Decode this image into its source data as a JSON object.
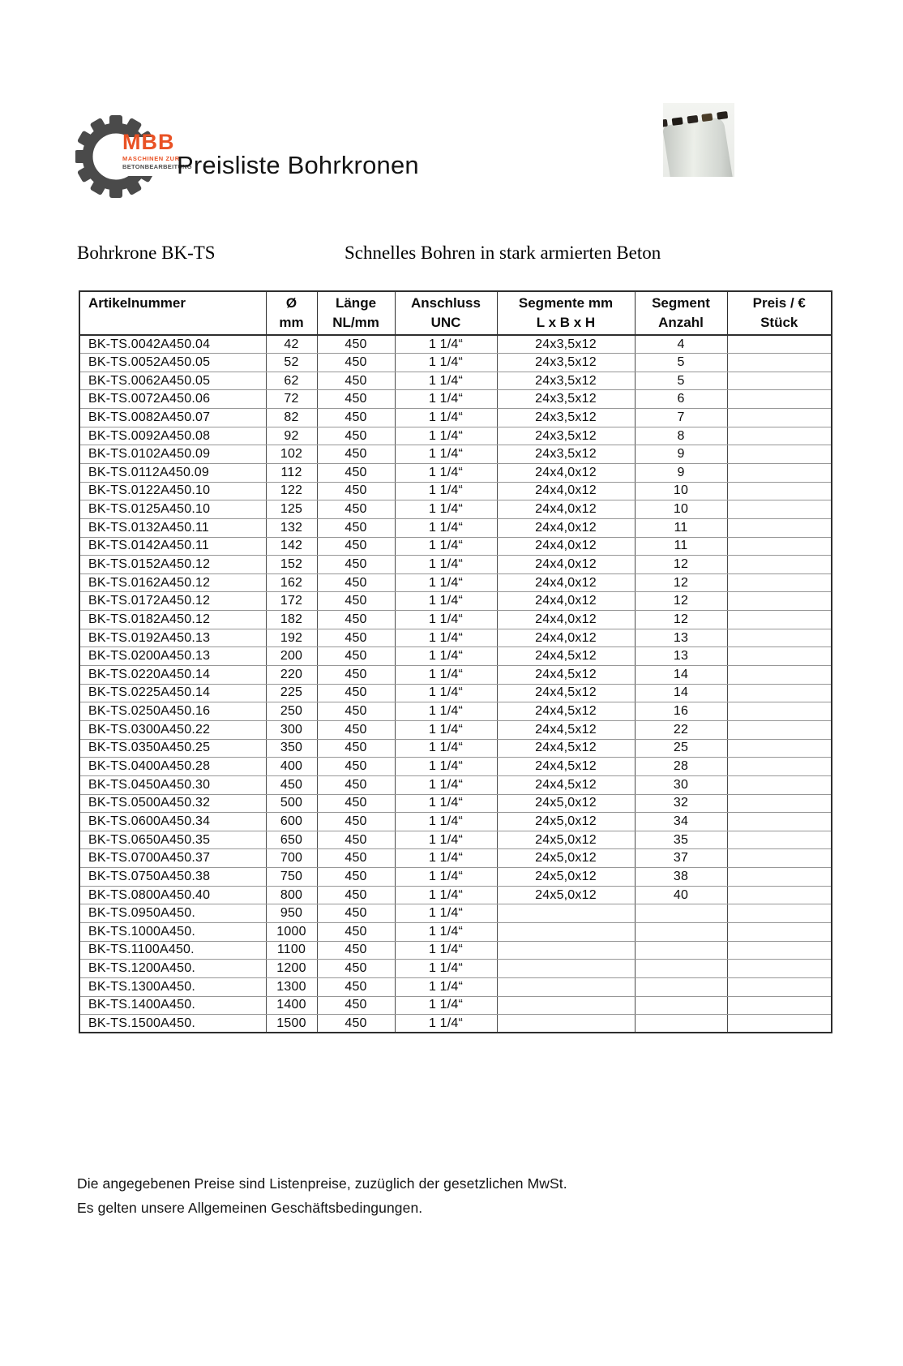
{
  "page": {
    "title": "Preisliste Bohrkronen"
  },
  "logo": {
    "brand": "MBB",
    "line1": "MASCHINEN ZUR",
    "line2": "BETONBEARBEITUNG",
    "accent_color": "#E95225",
    "gear_color": "#4A4A4A"
  },
  "section": {
    "product": "Bohrkrone BK-TS",
    "description": "Schnelles Bohren in stark armierten Beton"
  },
  "table": {
    "columns": [
      {
        "line1": "Artikelnummer",
        "line2": ""
      },
      {
        "line1": "Ø",
        "line2": "mm"
      },
      {
        "line1": "Länge",
        "line2": "NL/mm"
      },
      {
        "line1": "Anschluss",
        "line2": "UNC"
      },
      {
        "line1": "Segmente mm",
        "line2": "L x B x H"
      },
      {
        "line1": "Segment",
        "line2": "Anzahl"
      },
      {
        "line1": "Preis / €",
        "line2": "Stück"
      }
    ],
    "rows": [
      [
        "BK-TS.0042A450.04",
        "42",
        "450",
        "1 1/4“",
        "24x3,5x12",
        "4",
        ""
      ],
      [
        "BK-TS.0052A450.05",
        "52",
        "450",
        "1 1/4“",
        "24x3,5x12",
        "5",
        ""
      ],
      [
        "BK-TS.0062A450.05",
        "62",
        "450",
        "1 1/4“",
        "24x3,5x12",
        "5",
        ""
      ],
      [
        "BK-TS.0072A450.06",
        "72",
        "450",
        "1 1/4“",
        "24x3,5x12",
        "6",
        ""
      ],
      [
        "BK-TS.0082A450.07",
        "82",
        "450",
        "1 1/4“",
        "24x3,5x12",
        "7",
        ""
      ],
      [
        "BK-TS.0092A450.08",
        "92",
        "450",
        "1 1/4“",
        "24x3,5x12",
        "8",
        ""
      ],
      [
        "BK-TS.0102A450.09",
        "102",
        "450",
        "1 1/4“",
        "24x3,5x12",
        "9",
        ""
      ],
      [
        "BK-TS.0112A450.09",
        "112",
        "450",
        "1 1/4“",
        "24x4,0x12",
        "9",
        ""
      ],
      [
        "BK-TS.0122A450.10",
        "122",
        "450",
        "1 1/4“",
        "24x4,0x12",
        "10",
        ""
      ],
      [
        "BK-TS.0125A450.10",
        "125",
        "450",
        "1 1/4“",
        "24x4,0x12",
        "10",
        ""
      ],
      [
        "BK-TS.0132A450.11",
        "132",
        "450",
        "1 1/4“",
        "24x4,0x12",
        "11",
        ""
      ],
      [
        "BK-TS.0142A450.11",
        "142",
        "450",
        "1 1/4“",
        "24x4,0x12",
        "11",
        ""
      ],
      [
        "BK-TS.0152A450.12",
        "152",
        "450",
        "1 1/4“",
        "24x4,0x12",
        "12",
        ""
      ],
      [
        "BK-TS.0162A450.12",
        "162",
        "450",
        "1 1/4“",
        "24x4,0x12",
        "12",
        ""
      ],
      [
        "BK-TS.0172A450.12",
        "172",
        "450",
        "1 1/4“",
        "24x4,0x12",
        "12",
        ""
      ],
      [
        "BK-TS.0182A450.12",
        "182",
        "450",
        "1 1/4“",
        "24x4,0x12",
        "12",
        ""
      ],
      [
        "BK-TS.0192A450.13",
        "192",
        "450",
        "1 1/4“",
        "24x4,0x12",
        "13",
        ""
      ],
      [
        "BK-TS.0200A450.13",
        "200",
        "450",
        "1 1/4“",
        "24x4,5x12",
        "13",
        ""
      ],
      [
        "BK-TS.0220A450.14",
        "220",
        "450",
        "1 1/4“",
        "24x4,5x12",
        "14",
        ""
      ],
      [
        "BK-TS.0225A450.14",
        "225",
        "450",
        "1 1/4“",
        "24x4,5x12",
        "14",
        ""
      ],
      [
        "BK-TS.0250A450.16",
        "250",
        "450",
        "1 1/4“",
        "24x4,5x12",
        "16",
        ""
      ],
      [
        "BK-TS.0300A450.22",
        "300",
        "450",
        "1 1/4“",
        "24x4,5x12",
        "22",
        ""
      ],
      [
        "BK-TS.0350A450.25",
        "350",
        "450",
        "1 1/4“",
        "24x4,5x12",
        "25",
        ""
      ],
      [
        "BK-TS.0400A450.28",
        "400",
        "450",
        "1 1/4“",
        "24x4,5x12",
        "28",
        ""
      ],
      [
        "BK-TS.0450A450.30",
        "450",
        "450",
        "1 1/4“",
        "24x4,5x12",
        "30",
        ""
      ],
      [
        "BK-TS.0500A450.32",
        "500",
        "450",
        "1 1/4“",
        "24x5,0x12",
        "32",
        ""
      ],
      [
        "BK-TS.0600A450.34",
        "600",
        "450",
        "1 1/4“",
        "24x5,0x12",
        "34",
        ""
      ],
      [
        "BK-TS.0650A450.35",
        "650",
        "450",
        "1 1/4“",
        "24x5,0x12",
        "35",
        ""
      ],
      [
        "BK-TS.0700A450.37",
        "700",
        "450",
        "1 1/4“",
        "24x5,0x12",
        "37",
        ""
      ],
      [
        "BK-TS.0750A450.38",
        "750",
        "450",
        "1 1/4“",
        "24x5,0x12",
        "38",
        ""
      ],
      [
        "BK-TS.0800A450.40",
        "800",
        "450",
        "1 1/4“",
        "24x5,0x12",
        "40",
        ""
      ],
      [
        "BK-TS.0950A450.",
        "950",
        "450",
        "1 1/4“",
        "",
        "",
        ""
      ],
      [
        "BK-TS.1000A450.",
        "1000",
        "450",
        "1 1/4“",
        "",
        "",
        ""
      ],
      [
        "BK-TS.1100A450.",
        "1100",
        "450",
        "1 1/4“",
        "",
        "",
        ""
      ],
      [
        "BK-TS.1200A450.",
        "1200",
        "450",
        "1 1/4“",
        "",
        "",
        ""
      ],
      [
        "BK-TS.1300A450.",
        "1300",
        "450",
        "1 1/4“",
        "",
        "",
        ""
      ],
      [
        "BK-TS.1400A450.",
        "1400",
        "450",
        "1 1/4“",
        "",
        "",
        ""
      ],
      [
        "BK-TS.1500A450.",
        "1500",
        "450",
        "1 1/4“",
        "",
        "",
        ""
      ]
    ]
  },
  "footer": {
    "line1": "Die angegebenen Preise sind Listenpreise, zuzüglich der gesetzlichen MwSt.",
    "line2": "Es gelten unsere Allgemeinen Geschäftsbedingungen."
  }
}
